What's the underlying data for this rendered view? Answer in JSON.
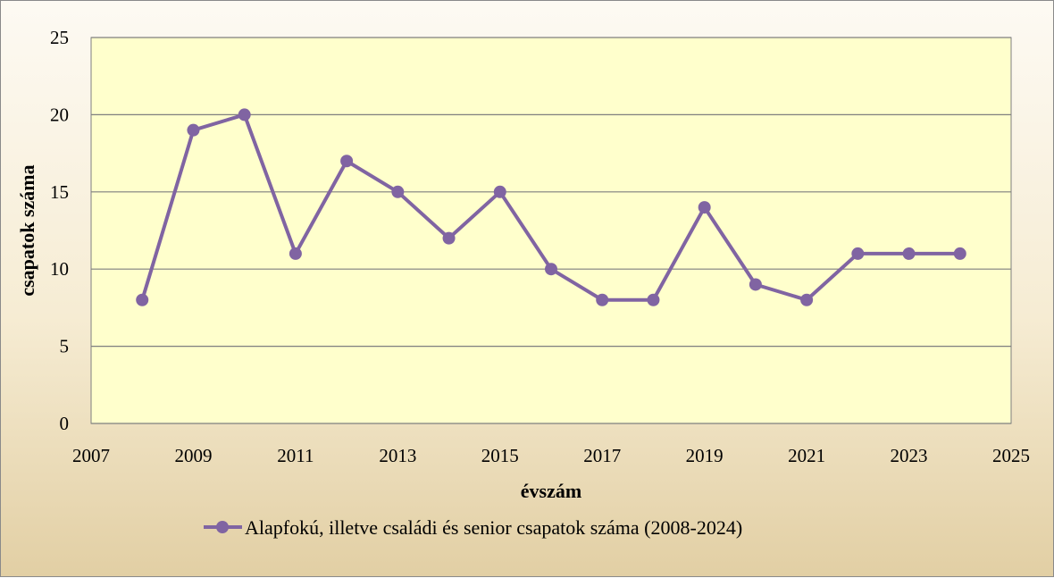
{
  "chart_data": {
    "type": "line",
    "title": "",
    "xlabel": "évszám",
    "ylabel": "csapatok száma",
    "xlim": [
      2007,
      2025
    ],
    "ylim": [
      0,
      25
    ],
    "x_ticks": [
      2007,
      2009,
      2011,
      2013,
      2015,
      2017,
      2019,
      2021,
      2023,
      2025
    ],
    "y_ticks": [
      0,
      5,
      10,
      15,
      20,
      25
    ],
    "grid": "horizontal",
    "legend_position": "bottom",
    "series": [
      {
        "name": "Alapfokú, illetve családi és senior csapatok száma (2008-2024)",
        "color": "#8064a2",
        "x": [
          2008,
          2009,
          2010,
          2011,
          2012,
          2013,
          2014,
          2015,
          2016,
          2017,
          2018,
          2019,
          2020,
          2021,
          2022,
          2023,
          2024
        ],
        "y": [
          8,
          19,
          20,
          11,
          17,
          15,
          12,
          15,
          10,
          8,
          8,
          14,
          9,
          8,
          11,
          11,
          11
        ]
      }
    ],
    "colors": {
      "plot_background": "#ffffcc",
      "grid_line": "#7f7f7f"
    }
  }
}
